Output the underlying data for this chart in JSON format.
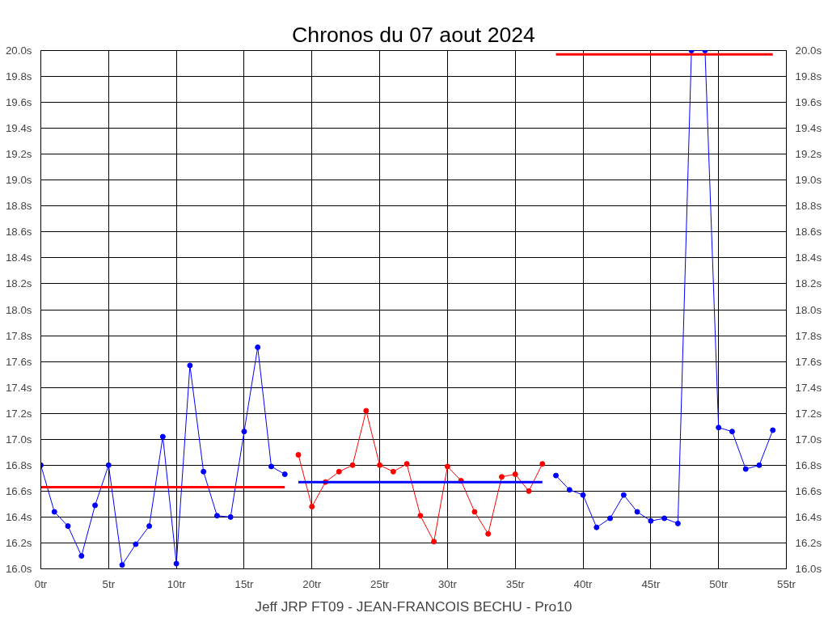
{
  "chart_data": {
    "type": "line",
    "title": "Chronos du 07 aout 2024",
    "annotations": [
      "Jeff JRP FT09 - JEAN-FRANCOIS BECHU - Pro10"
    ],
    "xlim": [
      0,
      55
    ],
    "xticks": [
      {
        "value": 0,
        "label": "0tr"
      },
      {
        "value": 5,
        "label": "5tr"
      },
      {
        "value": 10,
        "label": "10tr"
      },
      {
        "value": 15,
        "label": "15tr"
      },
      {
        "value": 20,
        "label": "20tr"
      },
      {
        "value": 25,
        "label": "25tr"
      },
      {
        "value": 30,
        "label": "30tr"
      },
      {
        "value": 35,
        "label": "35tr"
      },
      {
        "value": 40,
        "label": "40tr"
      },
      {
        "value": 45,
        "label": "45tr"
      },
      {
        "value": 50,
        "label": "50tr"
      },
      {
        "value": 55,
        "label": "55tr"
      }
    ],
    "ylim": [
      16.0,
      20.0
    ],
    "yticks": [
      {
        "value": 16.0,
        "label": "16.0s"
      },
      {
        "value": 16.2,
        "label": "16.2s"
      },
      {
        "value": 16.4,
        "label": "16.4s"
      },
      {
        "value": 16.6,
        "label": "16.6s"
      },
      {
        "value": 16.8,
        "label": "16.8s"
      },
      {
        "value": 17.0,
        "label": "17.0s"
      },
      {
        "value": 17.2,
        "label": "17.2s"
      },
      {
        "value": 17.4,
        "label": "17.4s"
      },
      {
        "value": 17.6,
        "label": "17.6s"
      },
      {
        "value": 17.8,
        "label": "17.8s"
      },
      {
        "value": 18.0,
        "label": "18.0s"
      },
      {
        "value": 18.2,
        "label": "18.2s"
      },
      {
        "value": 18.4,
        "label": "18.4s"
      },
      {
        "value": 18.6,
        "label": "18.6s"
      },
      {
        "value": 18.8,
        "label": "18.8s"
      },
      {
        "value": 19.0,
        "label": "19.0s"
      },
      {
        "value": 19.2,
        "label": "19.2s"
      },
      {
        "value": 19.4,
        "label": "19.4s"
      },
      {
        "value": 19.6,
        "label": "19.6s"
      },
      {
        "value": 19.8,
        "label": "19.8s"
      },
      {
        "value": 20.0,
        "label": "20.0s"
      }
    ],
    "y2lim": [
      16.0,
      20.0
    ],
    "y2ticks": [
      {
        "value": 16.0,
        "label": "16.0s"
      },
      {
        "value": 16.2,
        "label": "16.2s"
      },
      {
        "value": 16.4,
        "label": "16.4s"
      },
      {
        "value": 16.6,
        "label": "16.6s"
      },
      {
        "value": 16.8,
        "label": "16.8s"
      },
      {
        "value": 17.0,
        "label": "17.0s"
      },
      {
        "value": 17.2,
        "label": "17.2s"
      },
      {
        "value": 17.4,
        "label": "17.4s"
      },
      {
        "value": 17.6,
        "label": "17.6s"
      },
      {
        "value": 17.8,
        "label": "17.8s"
      },
      {
        "value": 18.0,
        "label": "18.0s"
      },
      {
        "value": 18.2,
        "label": "18.2s"
      },
      {
        "value": 18.4,
        "label": "18.4s"
      },
      {
        "value": 18.6,
        "label": "18.6s"
      },
      {
        "value": 18.8,
        "label": "18.8s"
      },
      {
        "value": 19.0,
        "label": "19.0s"
      },
      {
        "value": 19.2,
        "label": "19.2s"
      },
      {
        "value": 19.4,
        "label": "19.4s"
      },
      {
        "value": 19.6,
        "label": "19.6s"
      },
      {
        "value": 19.8,
        "label": "19.8s"
      },
      {
        "value": 20.0,
        "label": "20.0s"
      }
    ],
    "grid": true,
    "marker": "circle",
    "line_style": "solid",
    "series": [
      {
        "color": "#0000ff",
        "x": [
          0,
          1,
          2,
          3,
          4,
          5,
          6,
          7,
          8,
          9,
          10,
          11,
          12,
          13,
          14,
          15,
          16,
          17,
          18
        ],
        "values": [
          16.8,
          16.44,
          16.33,
          16.1,
          16.49,
          16.8,
          16.03,
          16.19,
          16.33,
          17.02,
          16.04,
          17.57,
          16.75,
          16.41,
          16.4,
          17.06,
          17.71,
          16.79,
          16.73
        ]
      },
      {
        "color": "#ff0000",
        "x": [
          19,
          20,
          21,
          22,
          23,
          24,
          25,
          26,
          27,
          28,
          29,
          30,
          31,
          32,
          33,
          34,
          35,
          36,
          37
        ],
        "values": [
          16.88,
          16.48,
          16.67,
          16.75,
          16.8,
          17.22,
          16.8,
          16.75,
          16.81,
          16.41,
          16.21,
          16.79,
          16.68,
          16.44,
          16.27,
          16.71,
          16.73,
          16.6,
          16.81
        ]
      },
      {
        "color": "#0000ff",
        "x": [
          38,
          39,
          40,
          41,
          42,
          43,
          44,
          45,
          46,
          47,
          48,
          49,
          50,
          51,
          52,
          53,
          54
        ],
        "values": [
          16.72,
          16.61,
          16.57,
          16.32,
          16.39,
          16.57,
          16.44,
          16.37,
          16.39,
          16.35,
          20.0,
          20.0,
          17.09,
          17.06,
          16.77,
          16.8,
          17.07
        ]
      },
      {
        "color": "#ff0000",
        "marker": "none",
        "x": [
          0,
          18
        ],
        "values": [
          16.63,
          16.63
        ]
      },
      {
        "color": "#0000ff",
        "marker": "none",
        "x": [
          19,
          37
        ],
        "values": [
          16.67,
          16.67
        ]
      },
      {
        "color": "#ff0000",
        "marker": "none",
        "x": [
          38,
          54
        ],
        "values": [
          19.97,
          19.97
        ]
      }
    ]
  }
}
